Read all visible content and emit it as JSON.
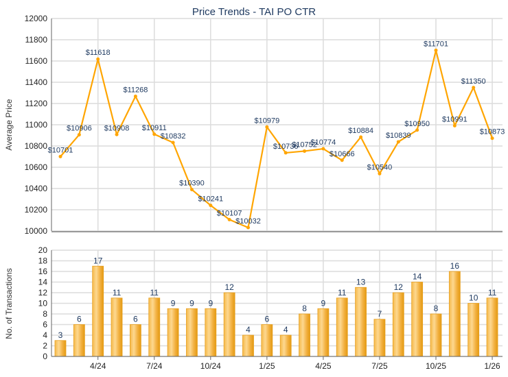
{
  "chart_data": [
    {
      "type": "line",
      "title": "Price Trends - TAI PO CTR",
      "xlabel": "",
      "ylabel": "Average Price",
      "ylim": [
        10000,
        12000
      ],
      "yticks": [
        "10000",
        "10200",
        "10400",
        "10600",
        "10800",
        "11000",
        "11200",
        "11400",
        "11600",
        "11800",
        "12000"
      ],
      "grid": true,
      "values": [
        10701,
        10906,
        11618,
        10908,
        11268,
        10911,
        10832,
        10390,
        10241,
        10107,
        10032,
        10979,
        10736,
        10752,
        10774,
        10666,
        10884,
        10540,
        10839,
        10950,
        11701,
        10991,
        11350,
        10873
      ],
      "labels": [
        "$10701",
        "$10906",
        "$11618",
        "$10908",
        "$11268",
        "$10911",
        "$10832",
        "$10390",
        "$10241",
        "$10107",
        "$10032",
        "$10979",
        "$10736",
        "$10752",
        "$10774",
        "$10666",
        "$10884",
        "$10540",
        "$10839",
        "$10950",
        "$11701",
        "$10991",
        "$11350",
        "$10873"
      ],
      "color": "#FFA500"
    },
    {
      "type": "bar",
      "xlabel": "",
      "ylabel": "No. of Transactions",
      "ylim": [
        0,
        20
      ],
      "yticks": [
        "0",
        "2",
        "4",
        "6",
        "8",
        "10",
        "12",
        "14",
        "16",
        "18",
        "20"
      ],
      "grid": true,
      "values": [
        3,
        6,
        17,
        11,
        6,
        11,
        9,
        9,
        9,
        12,
        4,
        6,
        4,
        8,
        9,
        11,
        13,
        7,
        12,
        14,
        8,
        16,
        10,
        11
      ],
      "xticks": [
        {
          "index": 2,
          "label": "4/24"
        },
        {
          "index": 5,
          "label": "7/24"
        },
        {
          "index": 8,
          "label": "10/24"
        },
        {
          "index": 11,
          "label": "1/25"
        },
        {
          "index": 14,
          "label": "4/25"
        },
        {
          "index": 17,
          "label": "7/25"
        },
        {
          "index": 20,
          "label": "10/25"
        },
        {
          "index": 23,
          "label": "1/26"
        }
      ],
      "color": "#F0A820"
    }
  ]
}
